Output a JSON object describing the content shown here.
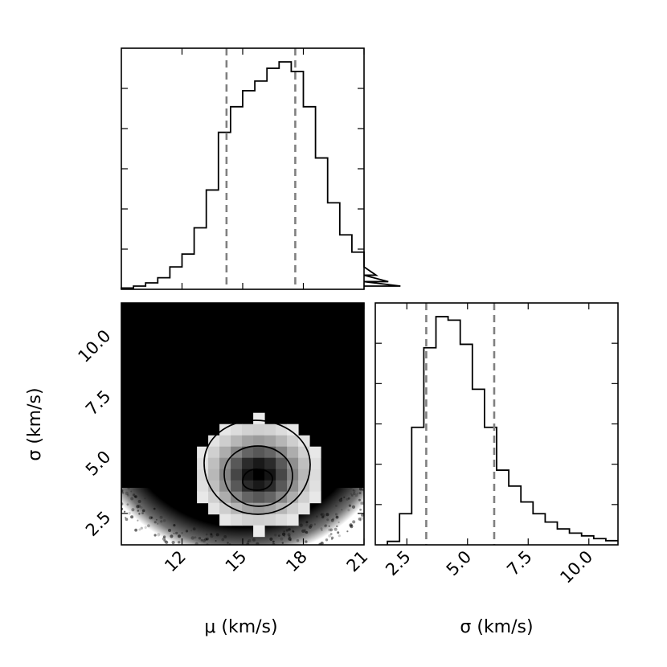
{
  "chart_data": [
    {
      "type": "histogram",
      "panel": "mu-marginal",
      "xlim": [
        9,
        21
      ],
      "bin_width": 0.6,
      "bin_edges_start": 9,
      "counts": [
        2,
        5,
        10,
        18,
        35,
        55,
        96,
        155,
        245,
        285,
        310,
        325,
        345,
        355,
        340,
        285,
        205,
        135,
        85,
        58,
        35,
        22,
        12,
        5
      ],
      "quantiles": [
        14.2,
        17.6
      ],
      "xlabel": "",
      "ylabel": ""
    },
    {
      "type": "scatter",
      "panel": "mu-sigma-joint",
      "xlim": [
        9,
        21
      ],
      "ylim": [
        1.2,
        11.2
      ],
      "xticks": [
        "12",
        "15",
        "18",
        "21"
      ],
      "yticks": [
        "2.5",
        "5.0",
        "7.5",
        "10.0"
      ],
      "peak": [
        15.8,
        4.1
      ],
      "xlabel": "μ (km/s)",
      "ylabel": "σ (km/s)"
    },
    {
      "type": "histogram",
      "panel": "sigma-marginal",
      "xlim": [
        1.2,
        11.2
      ],
      "bin_width": 0.5,
      "bin_edges_start": 1.7,
      "counts": [
        5,
        45,
        170,
        285,
        330,
        325,
        290,
        225,
        170,
        108,
        85,
        62,
        45,
        33,
        23,
        17,
        13,
        9,
        6
      ],
      "quantiles": [
        3.3,
        6.1
      ],
      "xticks": [
        "2.5",
        "5.0",
        "7.5",
        "10.0"
      ],
      "xlabel": "σ (km/s)",
      "ylabel": ""
    }
  ]
}
